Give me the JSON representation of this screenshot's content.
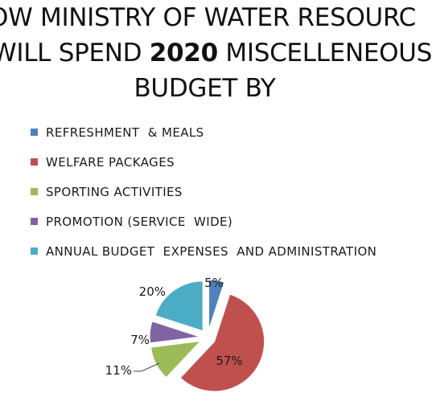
{
  "title": {
    "line1": "OW MINISTRY OF WATER RESOURC",
    "line2_pre": "WILL SPEND  ",
    "line2_bold": "2020",
    "line2_post": " MISCELLENEOUS",
    "line3": "BUDGET BY"
  },
  "chart_data": {
    "type": "pie",
    "title": "OW MINISTRY OF WATER RESOURC WILL SPEND 2020 MISCELLENEOUS BUDGET BY",
    "legend_position": "top",
    "categories": [
      "REFRESHMENT  & MEALS",
      "WELFARE PACKAGES",
      "SPORTING ACTIVITIES",
      "PROMOTION (SERVICE  WIDE)",
      "ANNUAL BUDGET  EXPENSES  AND ADMINISTRATION"
    ],
    "values": [
      5,
      57,
      11,
      7,
      20
    ],
    "labels": [
      "5%",
      "57%",
      "11%",
      "7%",
      "20%"
    ],
    "colors": [
      "#4f81bd",
      "#c0504d",
      "#9bbb59",
      "#8064a2",
      "#4bacc6"
    ],
    "exploded": true
  }
}
